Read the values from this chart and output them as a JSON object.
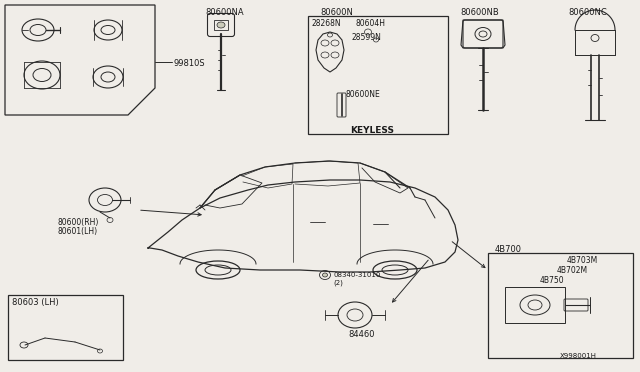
{
  "bg_color": "#f0ede8",
  "line_color": "#2a2a2a",
  "text_color": "#1a1a1a",
  "font_size": 5.5,
  "labels": {
    "top_left_box": "99810S",
    "key_na": "80600NA",
    "keyless_box_title": "80600N",
    "keyless_label": "KEYLESS",
    "part_28268N": "28268N",
    "part_80604H": "80604H",
    "part_28599N": "28599N",
    "part_80600NE": "80600NE",
    "key_nb": "80600NB",
    "key_nc": "80600NC",
    "door_lock_rh": "80600(RH)",
    "door_lock_lh": "80601(LH)",
    "lh_box": "80603 (LH)",
    "part_08340": "08340-31010",
    "part_08340b": "(2)",
    "part_84460": "84460",
    "right_box_title": "4B700",
    "part_4B703M": "4B703M",
    "part_4B702M": "4B702M",
    "part_4B750": "4B750",
    "right_box_bottom": "X998001H"
  }
}
